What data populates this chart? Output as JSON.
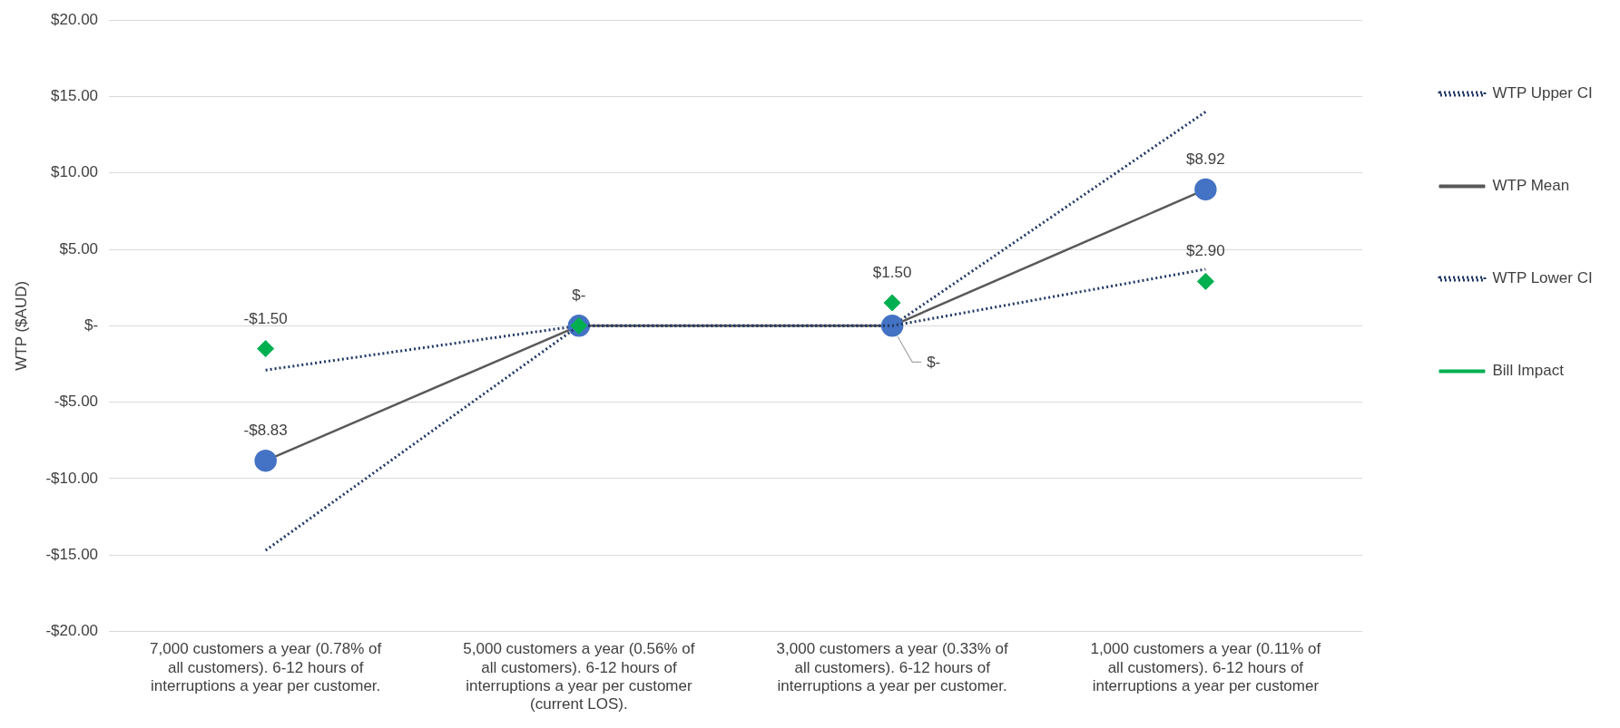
{
  "chart_data": {
    "type": "line",
    "ylabel": "WTP ($AUD)",
    "categories": [
      "7,000 customers a year (0.78% of all customers). 6-12 hours of interruptions a year per customer.",
      "5,000 customers a year (0.56% of all customers). 6-12 hours of interruptions a year per customer (current LOS).",
      "3,000 customers a year (0.33% of all customers). 6-12 hours of interruptions a year per customer.",
      "1,000 customers a year (0.11% of all customers). 6-12 hours of interruptions a year per customer"
    ],
    "series": [
      {
        "name": "WTP Upper CI",
        "color": "#203864",
        "line_style": "dotted",
        "marker": "none",
        "values": [
          -2.9,
          0,
          0,
          14.0
        ]
      },
      {
        "name": "WTP Mean",
        "color": "#595959",
        "colors": [
          "#4472c4",
          "#4472c4",
          "#4472c4",
          "#4472c4"
        ],
        "marker": "circle",
        "line_style": "solid",
        "values": [
          -8.83,
          0,
          0,
          8.92
        ],
        "value_labels": [
          "-$8.83",
          "$-",
          "$-",
          "$8.92"
        ]
      },
      {
        "name": "WTP Lower CI",
        "color": "#203864",
        "line_style": "dotted",
        "marker": "none",
        "values": [
          -14.7,
          0,
          0,
          3.7
        ]
      },
      {
        "name": "Bill Impact",
        "type": "scatter",
        "color": "#00b050",
        "marker": "diamond",
        "values": [
          -1.5,
          0,
          1.5,
          2.9
        ],
        "value_labels": [
          "-$1.50",
          null,
          "$1.50",
          "$2.90"
        ]
      }
    ],
    "ylim": [
      -20,
      20
    ],
    "yticks": [
      {
        "value": -20,
        "label": "-$20.00"
      },
      {
        "value": -15,
        "label": "-$15.00"
      },
      {
        "value": -10,
        "label": "-$10.00"
      },
      {
        "value": -5,
        "label": "-$5.00"
      },
      {
        "value": 0,
        "label": "$-"
      },
      {
        "value": 5,
        "label": "$5.00"
      },
      {
        "value": 10,
        "label": "$10.00"
      },
      {
        "value": 15,
        "label": "$15.00"
      },
      {
        "value": 20,
        "label": "$20.00"
      }
    ],
    "grid": "y",
    "legend": "right"
  }
}
